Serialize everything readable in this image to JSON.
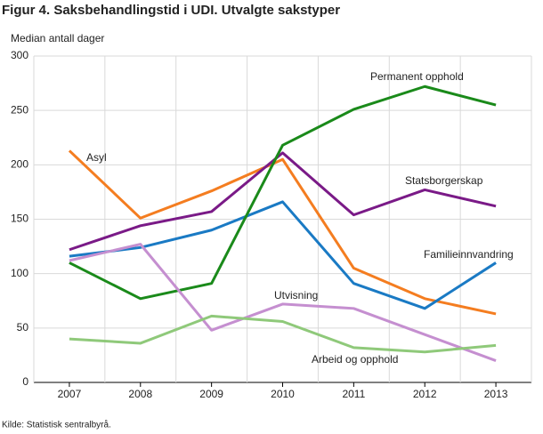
{
  "chart_data": {
    "type": "line",
    "title": "Figur 4. Saksbehandlingstid i UDI. Utvalgte sakstyper",
    "y_label": "Median antall dager",
    "source": "Kilde: Statistisk sentralbyrå.",
    "categories": [
      "2007",
      "2008",
      "2009",
      "2010",
      "2011",
      "2012",
      "2013"
    ],
    "series": [
      {
        "name": "Asyl",
        "color": "#f47d20",
        "values": [
          213,
          151,
          176,
          205,
          105,
          77,
          63
        ]
      },
      {
        "name": "Statsborgerskap",
        "color": "#7a1a87",
        "values": [
          122,
          144,
          157,
          211,
          154,
          177,
          162
        ]
      },
      {
        "name": "Familieinnvandring",
        "color": "#1a7ac4",
        "values": [
          116,
          124,
          140,
          166,
          91,
          68,
          110
        ]
      },
      {
        "name": "Permanent opphold",
        "color": "#1a8a1a",
        "values": [
          110,
          77,
          91,
          218,
          251,
          272,
          255
        ]
      },
      {
        "name": "Utvisning",
        "color": "#c58fd0",
        "values": [
          112,
          127,
          48,
          72,
          68,
          44,
          20
        ]
      },
      {
        "name": "Arbeid og opphold",
        "color": "#8fc97a",
        "values": [
          40,
          36,
          61,
          56,
          32,
          28,
          34
        ]
      }
    ],
    "ylim": [
      0,
      300
    ],
    "yticks": [
      0,
      50,
      100,
      150,
      200,
      250,
      300
    ],
    "grid": true
  }
}
